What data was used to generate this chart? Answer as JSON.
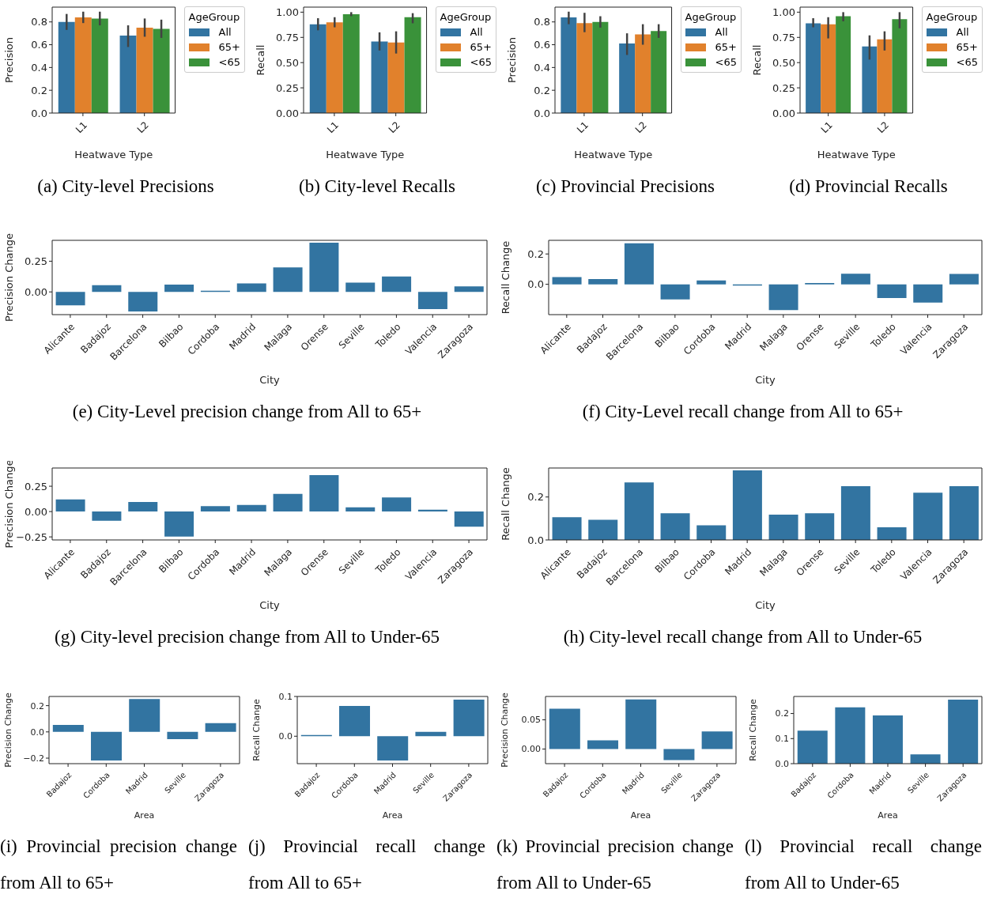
{
  "chart_data": [
    {
      "type": "bar",
      "categories": [
        "L1",
        "L2"
      ],
      "xlabel": "Heatwave Type",
      "ylabel": "Precision",
      "legend_title": "AgeGroup",
      "legend": "right",
      "ylim": [
        0,
        0.93
      ],
      "yticks": [
        {
          "value": 0,
          "label": "0.0"
        },
        {
          "value": 0.2,
          "label": "0.2"
        },
        {
          "value": 0.4,
          "label": "0.4"
        },
        {
          "value": 0.6,
          "label": "0.6"
        },
        {
          "value": 0.8,
          "label": "0.8"
        }
      ],
      "annotations": [
        "(a) City-level Precisions"
      ],
      "series": [
        {
          "name": "All",
          "color": "#3274a1",
          "values": [
            0.8,
            0.68
          ],
          "errors": [
            [
              0.73,
              0.87
            ],
            [
              0.58,
              0.77
            ]
          ]
        },
        {
          "name": "65+",
          "color": "#e1812c",
          "values": [
            0.84,
            0.75
          ],
          "errors": [
            [
              0.79,
              0.89
            ],
            [
              0.67,
              0.83
            ]
          ]
        },
        {
          "name": "<65",
          "color": "#3a923a",
          "values": [
            0.83,
            0.74
          ],
          "errors": [
            [
              0.77,
              0.89
            ],
            [
              0.66,
              0.82
            ]
          ]
        }
      ]
    },
    {
      "type": "bar",
      "categories": [
        "L1",
        "L2"
      ],
      "xlabel": "Heatwave Type",
      "ylabel": "Recall",
      "legend_title": "AgeGroup",
      "legend": "right",
      "ylim": [
        0,
        1.05
      ],
      "yticks": [
        {
          "value": 0,
          "label": "0.00"
        },
        {
          "value": 0.25,
          "label": "0.25"
        },
        {
          "value": 0.5,
          "label": "0.50"
        },
        {
          "value": 0.75,
          "label": "0.75"
        },
        {
          "value": 1,
          "label": "1.00"
        }
      ],
      "annotations": [
        "(b) City-level Recalls"
      ],
      "series": [
        {
          "name": "All",
          "color": "#3274a1",
          "values": [
            0.88,
            0.71
          ],
          "errors": [
            [
              0.82,
              0.94
            ],
            [
              0.62,
              0.8
            ]
          ]
        },
        {
          "name": "65+",
          "color": "#e1812c",
          "values": [
            0.9,
            0.7
          ],
          "errors": [
            [
              0.85,
              0.95
            ],
            [
              0.59,
              0.81
            ]
          ]
        },
        {
          "name": "<65",
          "color": "#3a923a",
          "values": [
            0.98,
            0.95
          ],
          "errors": [
            [
              0.96,
              1.0
            ],
            [
              0.89,
              0.99
            ]
          ]
        }
      ]
    },
    {
      "type": "bar",
      "categories": [
        "L1",
        "L2"
      ],
      "xlabel": "Heatwave Type",
      "ylabel": "Precision",
      "legend_title": "AgeGroup",
      "legend": "right",
      "ylim": [
        0,
        0.93
      ],
      "yticks": [
        {
          "value": 0,
          "label": "0.0"
        },
        {
          "value": 0.2,
          "label": "0.2"
        },
        {
          "value": 0.4,
          "label": "0.4"
        },
        {
          "value": 0.6,
          "label": "0.6"
        },
        {
          "value": 0.8,
          "label": "0.8"
        }
      ],
      "annotations": [
        "(c) Provincial Precisions"
      ],
      "series": [
        {
          "name": "All",
          "color": "#3274a1",
          "values": [
            0.84,
            0.61
          ],
          "errors": [
            [
              0.78,
              0.89
            ],
            [
              0.51,
              0.7
            ]
          ]
        },
        {
          "name": "65+",
          "color": "#e1812c",
          "values": [
            0.79,
            0.69
          ],
          "errors": [
            [
              0.71,
              0.88
            ],
            [
              0.6,
              0.78
            ]
          ]
        },
        {
          "name": "<65",
          "color": "#3a923a",
          "values": [
            0.8,
            0.72
          ],
          "errors": [
            [
              0.75,
              0.85
            ],
            [
              0.66,
              0.78
            ]
          ]
        }
      ]
    },
    {
      "type": "bar",
      "categories": [
        "L1",
        "L2"
      ],
      "xlabel": "Heatwave Type",
      "ylabel": "Recall",
      "legend_title": "AgeGroup",
      "legend": "right",
      "ylim": [
        0,
        1.05
      ],
      "yticks": [
        {
          "value": 0,
          "label": "0.00"
        },
        {
          "value": 0.25,
          "label": "0.25"
        },
        {
          "value": 0.5,
          "label": "0.50"
        },
        {
          "value": 0.75,
          "label": "0.75"
        },
        {
          "value": 1,
          "label": "1.00"
        }
      ],
      "annotations": [
        "(d) Provincial Recalls"
      ],
      "series": [
        {
          "name": "All",
          "color": "#3274a1",
          "values": [
            0.89,
            0.66
          ],
          "errors": [
            [
              0.85,
              0.94
            ],
            [
              0.53,
              0.77
            ]
          ]
        },
        {
          "name": "65+",
          "color": "#e1812c",
          "values": [
            0.88,
            0.73
          ],
          "errors": [
            [
              0.74,
              0.95
            ],
            [
              0.62,
              0.81
            ]
          ]
        },
        {
          "name": "<65",
          "color": "#3a923a",
          "values": [
            0.96,
            0.93
          ],
          "errors": [
            [
              0.91,
              1.0
            ],
            [
              0.84,
              1.0
            ]
          ]
        }
      ]
    },
    {
      "type": "bar",
      "categories": [
        "Alicante",
        "Badajoz",
        "Barcelona",
        "Bilbao",
        "Cordoba",
        "Madrid",
        "Malaga",
        "Orense",
        "Seville",
        "Toledo",
        "Valencia",
        "Zaragoza"
      ],
      "xlabel": "City",
      "ylabel": "Precision Change",
      "ylim": [
        -0.185,
        0.42
      ],
      "yticks": [
        {
          "value": 0,
          "label": "0.00"
        },
        {
          "value": 0.25,
          "label": "0.25"
        }
      ],
      "annotations": [
        "(e) City-Level precision change from All to 65+"
      ],
      "color": "#3274a1",
      "values": [
        -0.11,
        0.055,
        -0.16,
        0.06,
        0.01,
        0.07,
        0.2,
        0.4,
        0.075,
        0.125,
        -0.14,
        0.045
      ]
    },
    {
      "type": "bar",
      "categories": [
        "Alicante",
        "Badajoz",
        "Barcelona",
        "Bilbao",
        "Cordoba",
        "Madrid",
        "Malaga",
        "Orense",
        "Seville",
        "Toledo",
        "Valencia",
        "Zaragoza"
      ],
      "xlabel": "City",
      "ylabel": "Recall Change",
      "ylim": [
        -0.2,
        0.29
      ],
      "yticks": [
        {
          "value": 0,
          "label": "0.0"
        },
        {
          "value": 0.2,
          "label": "0.2"
        }
      ],
      "annotations": [
        "(f) City-Level recall change from All to 65+"
      ],
      "color": "#3274a1",
      "values": [
        0.047,
        0.034,
        0.27,
        -0.1,
        0.025,
        -0.008,
        -0.17,
        0.008,
        0.07,
        -0.09,
        -0.12,
        0.068
      ]
    },
    {
      "type": "bar",
      "categories": [
        "Alicante",
        "Badajoz",
        "Barcelona",
        "Bilbao",
        "Cordoba",
        "Madrid",
        "Malaga",
        "Orense",
        "Seville",
        "Toledo",
        "Valencia",
        "Zaragoza"
      ],
      "xlabel": "City",
      "ylabel": "Precision Change",
      "ylim": [
        -0.28,
        0.43
      ],
      "yticks": [
        {
          "value": -0.25,
          "label": "−0.25"
        },
        {
          "value": 0,
          "label": "0.00"
        },
        {
          "value": 0.25,
          "label": "0.25"
        }
      ],
      "annotations": [
        "(g) City-level precision change from All to Under-65"
      ],
      "color": "#3274a1",
      "values": [
        0.12,
        -0.09,
        0.095,
        -0.247,
        0.054,
        0.066,
        0.175,
        0.36,
        0.042,
        0.139,
        0.018,
        -0.15
      ]
    },
    {
      "type": "bar",
      "categories": [
        "Alicante",
        "Badajoz",
        "Barcelona",
        "Bilbao",
        "Cordoba",
        "Madrid",
        "Malaga",
        "Orense",
        "Seville",
        "Toledo",
        "Valencia",
        "Zaragoza"
      ],
      "xlabel": "City",
      "ylabel": "Recall Change",
      "ylim": [
        0,
        0.335
      ],
      "yticks": [
        {
          "value": 0,
          "label": "0.0"
        },
        {
          "value": 0.2,
          "label": "0.2"
        }
      ],
      "annotations": [
        "(h) City-level recall change from All to Under-65"
      ],
      "color": "#3274a1",
      "values": [
        0.106,
        0.094,
        0.268,
        0.124,
        0.068,
        0.324,
        0.118,
        0.124,
        0.25,
        0.059,
        0.22,
        0.25
      ]
    },
    {
      "type": "bar",
      "categories": [
        "Badajoz",
        "Cordoba",
        "Madrid",
        "Seville",
        "Zaragoza"
      ],
      "xlabel": "Area",
      "ylabel": "Precision Change",
      "ylim": [
        -0.242,
        0.27
      ],
      "yticks": [
        {
          "value": -0.2,
          "label": "−0.2"
        },
        {
          "value": 0,
          "label": "0.0"
        },
        {
          "value": 0.2,
          "label": "0.2"
        }
      ],
      "annotations": [
        "(i) Provincial precision change from All to 65+"
      ],
      "color": "#3274a1",
      "values": [
        0.053,
        -0.218,
        0.25,
        -0.055,
        0.066
      ]
    },
    {
      "type": "bar",
      "categories": [
        "Badajoz",
        "Cordoba",
        "Madrid",
        "Seville",
        "Zaragoza"
      ],
      "xlabel": "Area",
      "ylabel": "Recall Change",
      "ylim": [
        -0.069,
        0.1
      ],
      "yticks": [
        {
          "value": 0,
          "label": "0.0"
        },
        {
          "value": 0.1,
          "label": "0.1"
        }
      ],
      "annotations": [
        "(j) Provincial recall change from All to 65+"
      ],
      "color": "#3274a1",
      "values": [
        0.003,
        0.076,
        -0.061,
        0.011,
        0.092
      ]
    },
    {
      "type": "bar",
      "categories": [
        "Badajoz",
        "Cordoba",
        "Madrid",
        "Seville",
        "Zaragoza"
      ],
      "xlabel": "Area",
      "ylabel": "Precision Change",
      "ylim": [
        -0.025,
        0.09
      ],
      "yticks": [
        {
          "value": 0,
          "label": "0.00"
        },
        {
          "value": 0.05,
          "label": "0.05"
        }
      ],
      "annotations": [
        "(k) Provincial precision change from All to Under-65"
      ],
      "color": "#3274a1",
      "values": [
        0.069,
        0.015,
        0.085,
        -0.019,
        0.03
      ]
    },
    {
      "type": "bar",
      "categories": [
        "Badajoz",
        "Cordoba",
        "Madrid",
        "Seville",
        "Zaragoza"
      ],
      "xlabel": "Area",
      "ylabel": "Recall Change",
      "ylim": [
        0,
        0.268
      ],
      "yticks": [
        {
          "value": 0,
          "label": "0.0"
        },
        {
          "value": 0.1,
          "label": "0.1"
        },
        {
          "value": 0.2,
          "label": "0.2"
        }
      ],
      "annotations": [
        "(l) Provincial recall change from All to Under-65"
      ],
      "color": "#3274a1",
      "values": [
        0.132,
        0.225,
        0.192,
        0.037,
        0.255
      ]
    }
  ]
}
